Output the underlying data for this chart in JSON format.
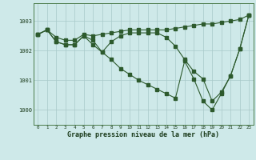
{
  "title": "Graphe pression niveau de la mer (hPa)",
  "background_color": "#cee9e9",
  "line_color": "#2d5a2d",
  "xlim": [
    -0.5,
    23.5
  ],
  "ylim": [
    999.5,
    1003.6
  ],
  "yticks": [
    1000,
    1001,
    1002,
    1003
  ],
  "xticks": [
    0,
    1,
    2,
    3,
    4,
    5,
    6,
    7,
    8,
    9,
    10,
    11,
    12,
    13,
    14,
    15,
    16,
    17,
    18,
    19,
    20,
    21,
    22,
    23
  ],
  "series": [
    [
      1002.55,
      1002.7,
      1002.45,
      1002.35,
      1002.35,
      1002.55,
      1002.5,
      1002.55,
      1002.6,
      1002.65,
      1002.7,
      1002.7,
      1002.7,
      1002.7,
      1002.7,
      1002.75,
      1002.8,
      1002.85,
      1002.9,
      1002.9,
      1002.95,
      1003.0,
      1003.05,
      1003.2
    ],
    [
      1002.55,
      1002.7,
      1002.3,
      1002.2,
      1002.2,
      1002.5,
      1002.35,
      1001.95,
      1002.3,
      1002.5,
      1002.6,
      1002.6,
      1002.6,
      1002.6,
      1002.45,
      1002.15,
      1001.7,
      1001.3,
      1001.05,
      1000.3,
      1000.6,
      1001.15,
      1002.05,
      1003.2
    ],
    [
      1002.55,
      1002.7,
      1002.3,
      1002.2,
      1002.2,
      1002.5,
      1002.2,
      1001.95,
      1001.7,
      1001.4,
      1001.2,
      1001.0,
      1000.85,
      1000.7,
      1000.55,
      1000.4,
      1001.65,
      1001.05,
      1000.3,
      1000.0,
      1000.55,
      1001.15,
      1002.05,
      1003.2
    ]
  ]
}
